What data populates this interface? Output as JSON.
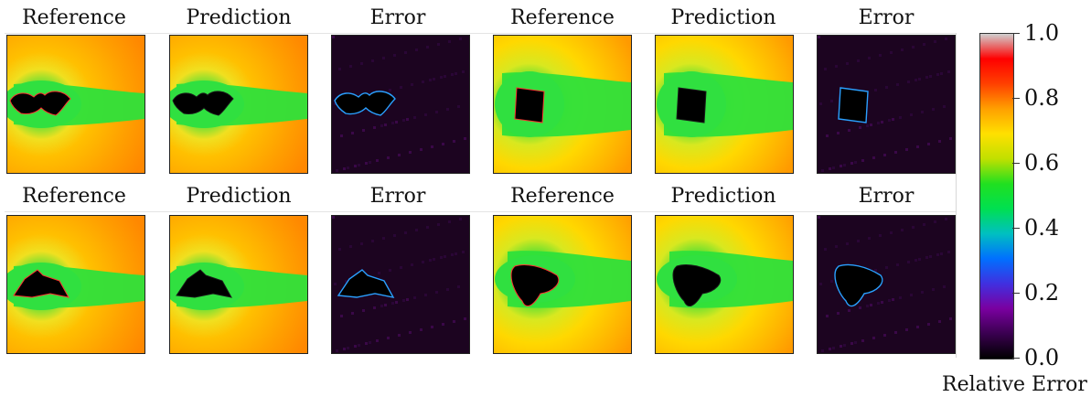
{
  "labels": {
    "reference": "Reference",
    "prediction": "Prediction",
    "error": "Error"
  },
  "colorbar": {
    "title": "Relative Error",
    "ticks": [
      "1.0",
      "0.8",
      "0.6",
      "0.4",
      "0.2",
      "0.0"
    ],
    "range": [
      0.0,
      1.0
    ],
    "colormap": [
      "#000000",
      "#3a0050",
      "#7a00a0",
      "#4030e0",
      "#0070ff",
      "#00c0c0",
      "#00e050",
      "#20e020",
      "#c0e000",
      "#ffe000",
      "#ffa000",
      "#ff4000",
      "#ff0000",
      "#d0d0d0"
    ]
  },
  "rows": [
    {
      "samples": [
        {
          "shape": "bat",
          "reference": "Reference",
          "prediction": "Prediction",
          "error": "Error"
        },
        {
          "shape": "square",
          "reference": "Reference",
          "prediction": "Prediction",
          "error": "Error"
        }
      ]
    },
    {
      "samples": [
        {
          "shape": "delta",
          "reference": "Reference",
          "prediction": "Prediction",
          "error": "Error"
        },
        {
          "shape": "blob",
          "reference": "Reference",
          "prediction": "Prediction",
          "error": "Error"
        }
      ]
    }
  ]
}
